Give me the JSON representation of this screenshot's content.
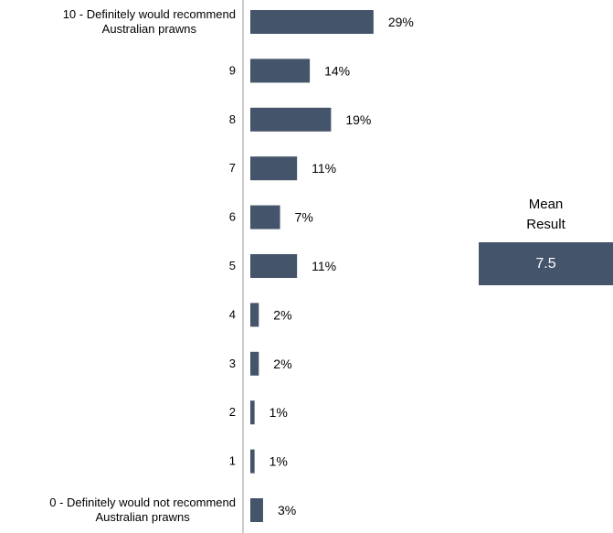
{
  "chart_data": {
    "type": "bar",
    "orientation": "horizontal",
    "categories": [
      [
        "10 - Definitely would recommend",
        "Australian prawns"
      ],
      [
        "9"
      ],
      [
        "8"
      ],
      [
        "7"
      ],
      [
        "6"
      ],
      [
        "5"
      ],
      [
        "4"
      ],
      [
        "3"
      ],
      [
        "2"
      ],
      [
        "1"
      ],
      [
        "0 - Definitely would not recommend",
        "Australian prawns"
      ]
    ],
    "values": [
      29,
      14,
      19,
      11,
      7,
      11,
      2,
      2,
      1,
      1,
      3
    ],
    "value_labels": [
      "29%",
      "14%",
      "19%",
      "11%",
      "7%",
      "11%",
      "2%",
      "2%",
      "1%",
      "1%",
      "3%"
    ],
    "unit": "%",
    "bar_color": "#44546a",
    "grid": false,
    "legend": "none"
  },
  "mean": {
    "title_line1": "Mean",
    "title_line2": "Result",
    "value": "7.5",
    "box_color": "#44546a"
  }
}
